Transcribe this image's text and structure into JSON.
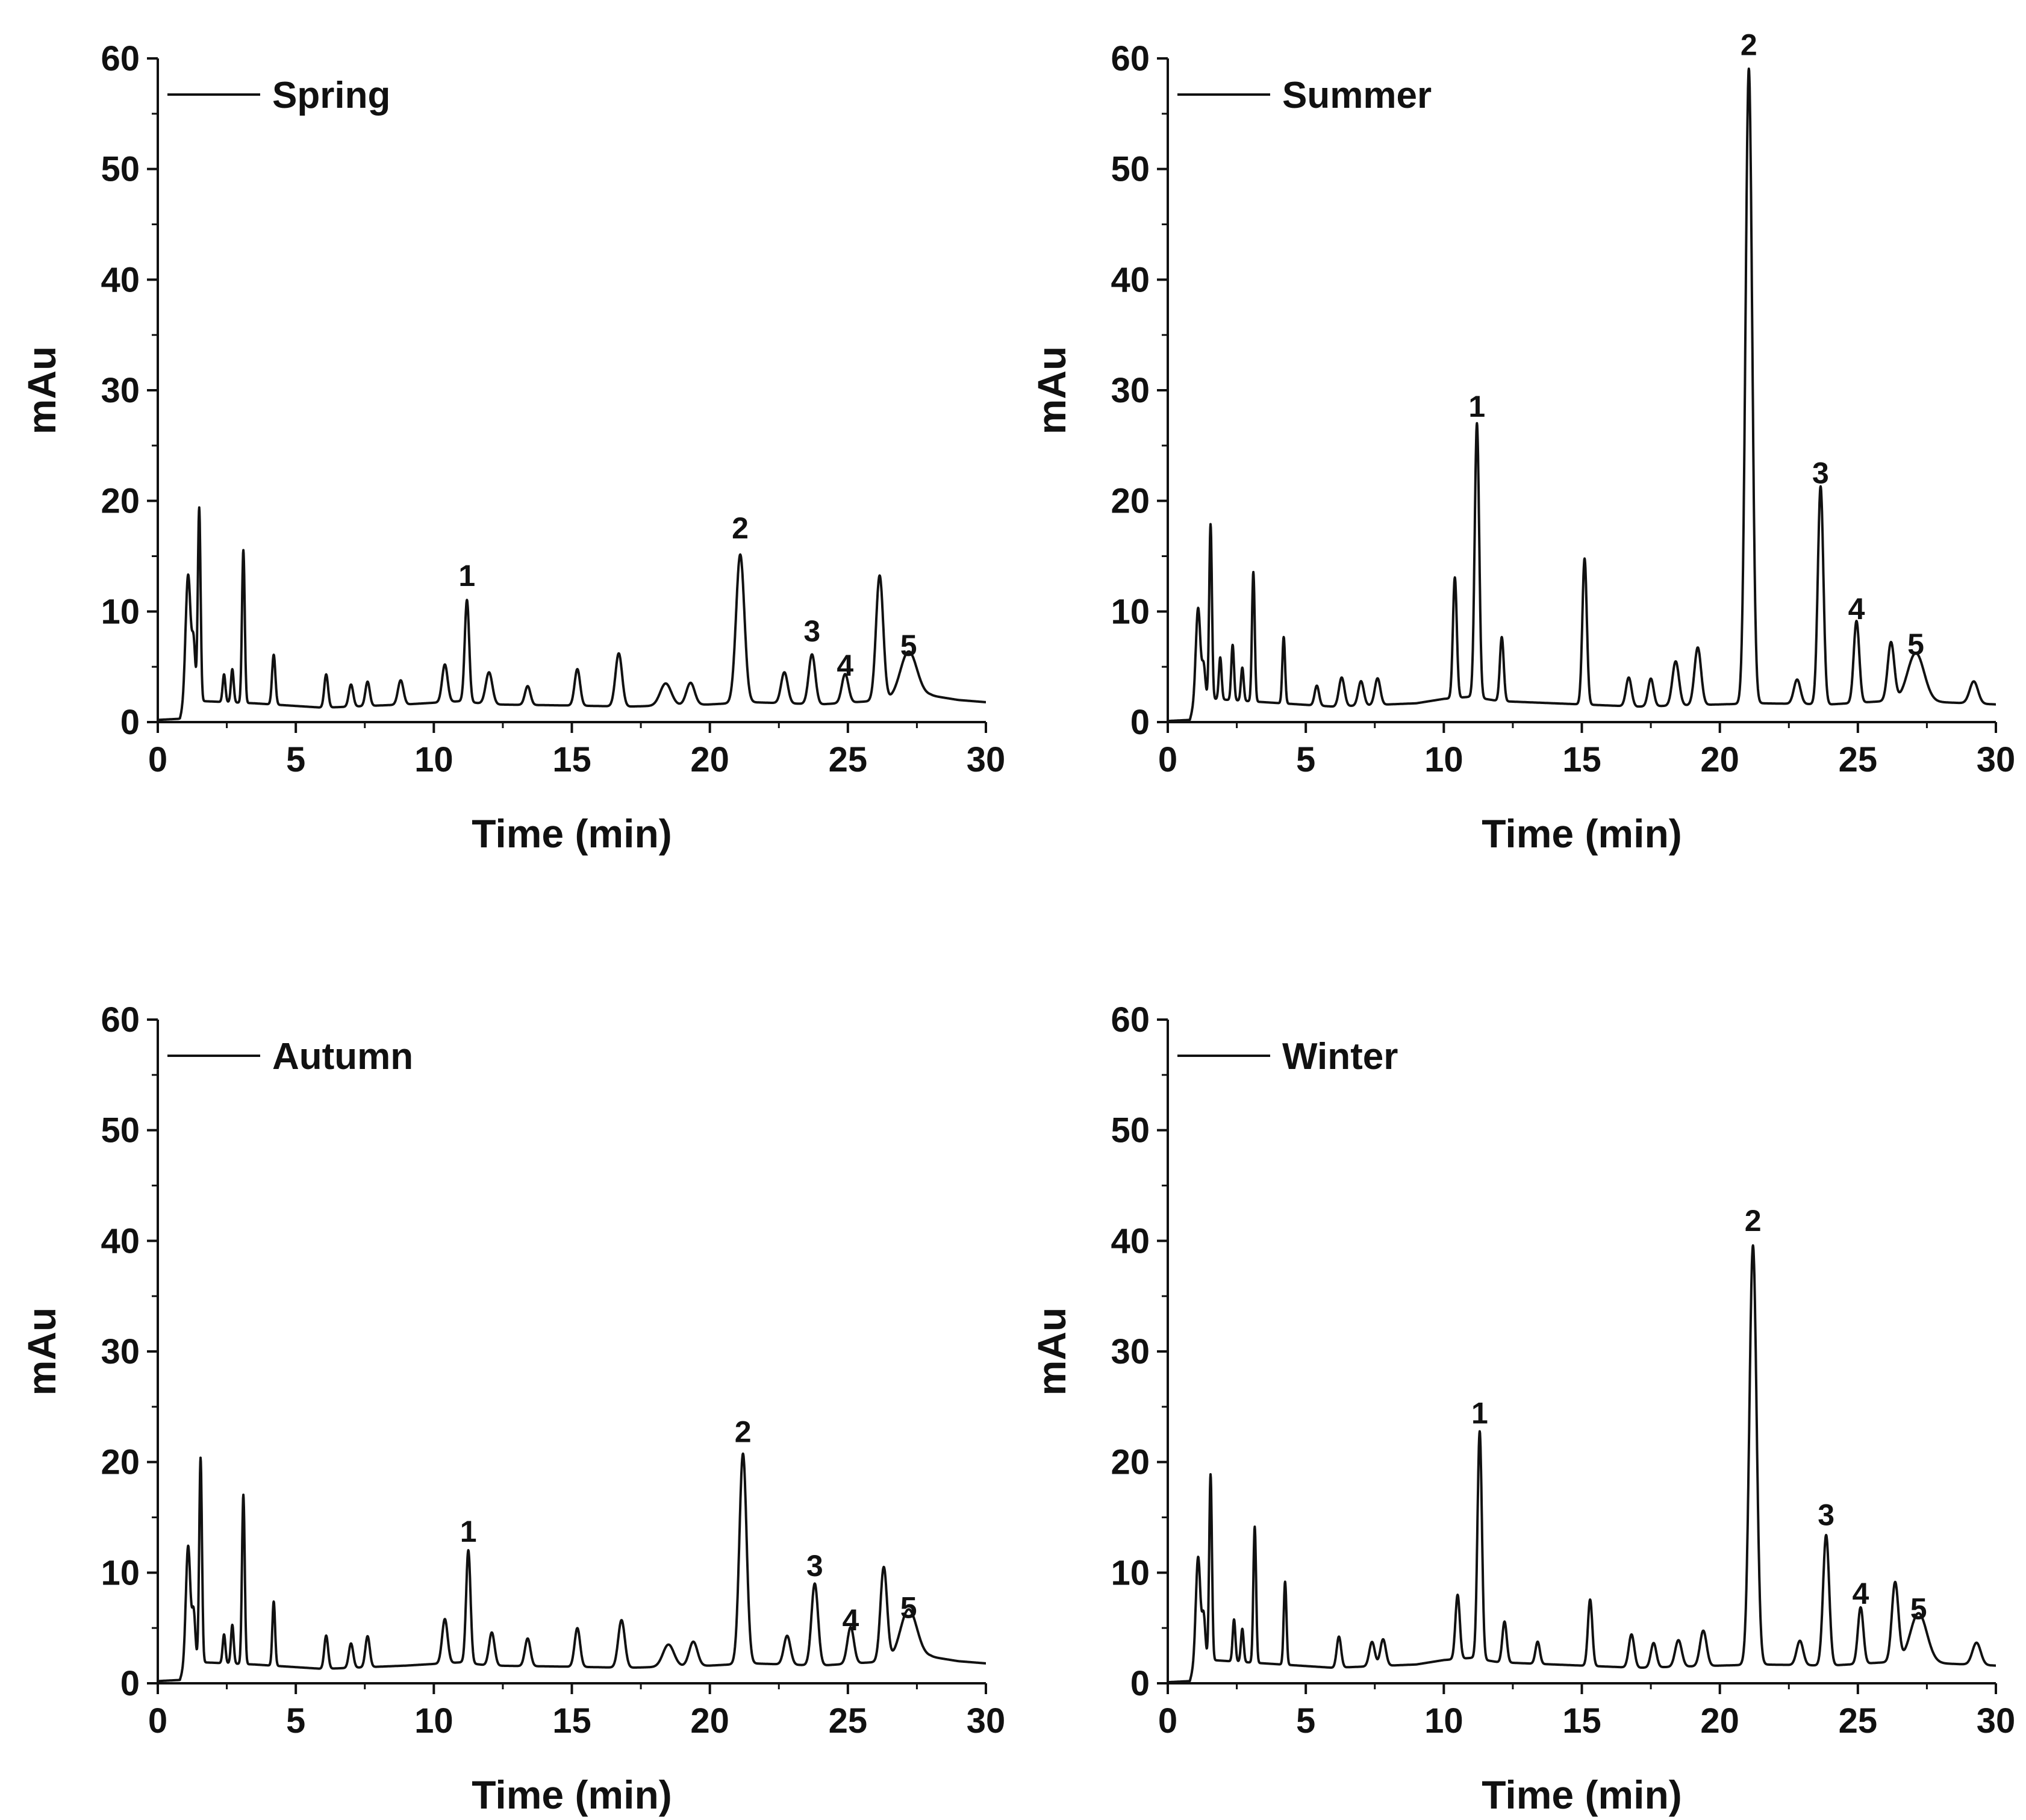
{
  "colors": {
    "line": "#111111",
    "axis": "#111111",
    "background": "#ffffff"
  },
  "chart_data": [
    {
      "type": "line",
      "title": "",
      "legend": "Spring",
      "xlabel": "Time (min)",
      "ylabel": "mAu",
      "xlim": [
        0,
        30
      ],
      "ylim": [
        0,
        60
      ],
      "xticks": [
        "0",
        "5",
        "10",
        "15",
        "20",
        "25",
        "30"
      ],
      "yticks": [
        "0",
        "10",
        "20",
        "30",
        "40",
        "50",
        "60"
      ],
      "baseline": [
        [
          0,
          0.2
        ],
        [
          0.8,
          0.3
        ],
        [
          1.0,
          1.8
        ],
        [
          1.6,
          1.9
        ],
        [
          3.5,
          1.7
        ],
        [
          6,
          1.3
        ],
        [
          9,
          1.6
        ],
        [
          11,
          1.9
        ],
        [
          12,
          1.6
        ],
        [
          15,
          1.5
        ],
        [
          17,
          1.4
        ],
        [
          20,
          1.6
        ],
        [
          21.5,
          1.8
        ],
        [
          24,
          1.6
        ],
        [
          26.5,
          2.0
        ],
        [
          28,
          2.4
        ],
        [
          29,
          2.0
        ],
        [
          30,
          1.8
        ]
      ],
      "peaks": [
        {
          "t": 1.1,
          "h": 11.5,
          "w": 0.09
        },
        {
          "t": 1.3,
          "h": 5.0,
          "w": 0.06
        },
        {
          "t": 1.5,
          "h": 17.5,
          "w": 0.05
        },
        {
          "t": 2.4,
          "h": 2.5,
          "w": 0.05
        },
        {
          "t": 2.7,
          "h": 3.0,
          "w": 0.05
        },
        {
          "t": 3.1,
          "h": 13.8,
          "w": 0.05
        },
        {
          "t": 4.2,
          "h": 4.5,
          "w": 0.06
        },
        {
          "t": 6.1,
          "h": 3.0,
          "w": 0.07
        },
        {
          "t": 7.0,
          "h": 2.0,
          "w": 0.08
        },
        {
          "t": 7.6,
          "h": 2.2,
          "w": 0.08
        },
        {
          "t": 8.8,
          "h": 2.2,
          "w": 0.1
        },
        {
          "t": 10.4,
          "h": 3.4,
          "w": 0.1
        },
        {
          "t": 11.2,
          "h": 9.2,
          "w": 0.08
        },
        {
          "t": 12.0,
          "h": 2.9,
          "w": 0.12
        },
        {
          "t": 13.4,
          "h": 1.7,
          "w": 0.1
        },
        {
          "t": 15.2,
          "h": 3.3,
          "w": 0.1
        },
        {
          "t": 16.7,
          "h": 4.8,
          "w": 0.12
        },
        {
          "t": 18.4,
          "h": 2.0,
          "w": 0.2
        },
        {
          "t": 19.3,
          "h": 2.0,
          "w": 0.15
        },
        {
          "t": 21.1,
          "h": 13.4,
          "w": 0.15
        },
        {
          "t": 22.7,
          "h": 2.8,
          "w": 0.12
        },
        {
          "t": 23.7,
          "h": 4.5,
          "w": 0.12
        },
        {
          "t": 24.9,
          "h": 2.6,
          "w": 0.12
        },
        {
          "t": 26.15,
          "h": 11.3,
          "w": 0.13
        },
        {
          "t": 27.2,
          "h": 4.2,
          "w": 0.3
        }
      ],
      "labels": [
        {
          "text": "1",
          "t": 11.2,
          "y": 12.3
        },
        {
          "text": "2",
          "t": 21.1,
          "y": 16.6
        },
        {
          "text": "3",
          "t": 23.7,
          "y": 7.3
        },
        {
          "text": "4",
          "t": 24.9,
          "y": 4.2
        },
        {
          "text": "5",
          "t": 27.2,
          "y": 6.0
        }
      ]
    },
    {
      "type": "line",
      "title": "",
      "legend": "Summer",
      "xlabel": "Time (min)",
      "ylabel": "mAu",
      "xlim": [
        0,
        30
      ],
      "ylim": [
        0,
        60
      ],
      "xticks": [
        "0",
        "5",
        "10",
        "15",
        "20",
        "25",
        "30"
      ],
      "yticks": [
        "0",
        "10",
        "20",
        "30",
        "40",
        "50",
        "60"
      ],
      "baseline": [
        [
          0,
          0.1
        ],
        [
          0.8,
          0.2
        ],
        [
          1.0,
          2.0
        ],
        [
          1.6,
          2.1
        ],
        [
          3.5,
          1.8
        ],
        [
          6,
          1.4
        ],
        [
          9,
          1.7
        ],
        [
          10,
          2.1
        ],
        [
          11,
          2.3
        ],
        [
          12,
          1.9
        ],
        [
          15,
          1.6
        ],
        [
          17,
          1.4
        ],
        [
          20,
          1.6
        ],
        [
          21.5,
          1.7
        ],
        [
          24,
          1.6
        ],
        [
          26,
          1.9
        ],
        [
          28,
          1.8
        ],
        [
          30,
          1.6
        ]
      ],
      "peaks": [
        {
          "t": 1.1,
          "h": 8.3,
          "w": 0.08
        },
        {
          "t": 1.3,
          "h": 3.0,
          "w": 0.06
        },
        {
          "t": 1.55,
          "h": 15.8,
          "w": 0.05
        },
        {
          "t": 1.9,
          "h": 3.8,
          "w": 0.05
        },
        {
          "t": 2.35,
          "h": 5.0,
          "w": 0.05
        },
        {
          "t": 2.7,
          "h": 3.0,
          "w": 0.05
        },
        {
          "t": 3.1,
          "h": 11.7,
          "w": 0.05
        },
        {
          "t": 4.2,
          "h": 6.0,
          "w": 0.05
        },
        {
          "t": 5.4,
          "h": 1.8,
          "w": 0.08
        },
        {
          "t": 6.3,
          "h": 2.6,
          "w": 0.1
        },
        {
          "t": 7.0,
          "h": 2.2,
          "w": 0.1
        },
        {
          "t": 7.6,
          "h": 2.4,
          "w": 0.1
        },
        {
          "t": 10.4,
          "h": 10.9,
          "w": 0.07
        },
        {
          "t": 11.2,
          "h": 24.8,
          "w": 0.08
        },
        {
          "t": 12.1,
          "h": 5.8,
          "w": 0.07
        },
        {
          "t": 15.1,
          "h": 13.2,
          "w": 0.08
        },
        {
          "t": 16.7,
          "h": 2.6,
          "w": 0.1
        },
        {
          "t": 17.5,
          "h": 2.5,
          "w": 0.1
        },
        {
          "t": 18.4,
          "h": 4.0,
          "w": 0.12
        },
        {
          "t": 19.2,
          "h": 5.2,
          "w": 0.12
        },
        {
          "t": 21.05,
          "h": 57.4,
          "w": 0.12
        },
        {
          "t": 22.8,
          "h": 2.2,
          "w": 0.12
        },
        {
          "t": 23.65,
          "h": 19.7,
          "w": 0.1
        },
        {
          "t": 24.95,
          "h": 7.4,
          "w": 0.1
        },
        {
          "t": 26.2,
          "h": 5.3,
          "w": 0.12
        },
        {
          "t": 27.1,
          "h": 4.4,
          "w": 0.3
        },
        {
          "t": 29.2,
          "h": 2.0,
          "w": 0.15
        }
      ],
      "labels": [
        {
          "text": "1",
          "t": 11.2,
          "y": 27.6
        },
        {
          "text": "2",
          "t": 21.05,
          "y": 60.3
        },
        {
          "text": "3",
          "t": 23.65,
          "y": 21.6
        },
        {
          "text": "4",
          "t": 24.95,
          "y": 9.3
        },
        {
          "text": "5",
          "t": 27.1,
          "y": 6.1
        }
      ]
    },
    {
      "type": "line",
      "title": "",
      "legend": "Autumn",
      "xlabel": "Time (min)",
      "ylabel": "mAu",
      "xlim": [
        0,
        30
      ],
      "ylim": [
        0,
        60
      ],
      "xticks": [
        "0",
        "5",
        "10",
        "15",
        "20",
        "25",
        "30"
      ],
      "yticks": [
        "0",
        "10",
        "20",
        "30",
        "40",
        "50",
        "60"
      ],
      "baseline": [
        [
          0,
          0.2
        ],
        [
          0.8,
          0.3
        ],
        [
          1.0,
          1.8
        ],
        [
          1.6,
          1.9
        ],
        [
          3.5,
          1.7
        ],
        [
          6,
          1.3
        ],
        [
          9,
          1.6
        ],
        [
          11,
          1.9
        ],
        [
          12,
          1.6
        ],
        [
          15,
          1.5
        ],
        [
          17,
          1.4
        ],
        [
          20,
          1.6
        ],
        [
          21.5,
          1.8
        ],
        [
          24,
          1.6
        ],
        [
          26.5,
          2.0
        ],
        [
          28,
          2.4
        ],
        [
          29,
          2.0
        ],
        [
          30,
          1.8
        ]
      ],
      "peaks": [
        {
          "t": 1.1,
          "h": 10.6,
          "w": 0.08
        },
        {
          "t": 1.3,
          "h": 4.5,
          "w": 0.06
        },
        {
          "t": 1.55,
          "h": 18.5,
          "w": 0.05
        },
        {
          "t": 2.4,
          "h": 2.6,
          "w": 0.05
        },
        {
          "t": 2.7,
          "h": 3.5,
          "w": 0.05
        },
        {
          "t": 3.1,
          "h": 15.3,
          "w": 0.05
        },
        {
          "t": 4.2,
          "h": 5.8,
          "w": 0.05
        },
        {
          "t": 6.1,
          "h": 3.0,
          "w": 0.07
        },
        {
          "t": 7.0,
          "h": 2.2,
          "w": 0.08
        },
        {
          "t": 7.6,
          "h": 2.8,
          "w": 0.08
        },
        {
          "t": 10.4,
          "h": 4.0,
          "w": 0.1
        },
        {
          "t": 11.25,
          "h": 10.2,
          "w": 0.08
        },
        {
          "t": 12.1,
          "h": 3.0,
          "w": 0.1
        },
        {
          "t": 13.4,
          "h": 2.5,
          "w": 0.1
        },
        {
          "t": 15.2,
          "h": 3.5,
          "w": 0.1
        },
        {
          "t": 16.8,
          "h": 4.3,
          "w": 0.12
        },
        {
          "t": 18.5,
          "h": 2.0,
          "w": 0.2
        },
        {
          "t": 19.4,
          "h": 2.2,
          "w": 0.15
        },
        {
          "t": 21.2,
          "h": 19.0,
          "w": 0.13
        },
        {
          "t": 22.8,
          "h": 2.6,
          "w": 0.12
        },
        {
          "t": 23.8,
          "h": 7.4,
          "w": 0.12
        },
        {
          "t": 25.1,
          "h": 3.3,
          "w": 0.12
        },
        {
          "t": 26.3,
          "h": 8.5,
          "w": 0.12
        },
        {
          "t": 27.2,
          "h": 4.5,
          "w": 0.3
        }
      ],
      "labels": [
        {
          "text": "1",
          "t": 11.25,
          "y": 12.8
        },
        {
          "text": "2",
          "t": 21.2,
          "y": 21.8
        },
        {
          "text": "3",
          "t": 23.8,
          "y": 9.7
        },
        {
          "text": "4",
          "t": 25.1,
          "y": 4.8
        },
        {
          "text": "5",
          "t": 27.2,
          "y": 5.9
        }
      ]
    },
    {
      "type": "line",
      "title": "",
      "legend": "Winter",
      "xlabel": "Time (min)",
      "ylabel": "mAu",
      "xlim": [
        0,
        30
      ],
      "ylim": [
        0,
        60
      ],
      "xticks": [
        "0",
        "5",
        "10",
        "15",
        "20",
        "25",
        "30"
      ],
      "yticks": [
        "0",
        "10",
        "20",
        "30",
        "40",
        "50",
        "60"
      ],
      "baseline": [
        [
          0,
          0.1
        ],
        [
          0.8,
          0.2
        ],
        [
          1.0,
          2.0
        ],
        [
          1.6,
          2.1
        ],
        [
          3.5,
          1.8
        ],
        [
          6,
          1.4
        ],
        [
          9,
          1.7
        ],
        [
          10,
          2.1
        ],
        [
          11,
          2.3
        ],
        [
          12,
          1.9
        ],
        [
          15,
          1.6
        ],
        [
          17,
          1.4
        ],
        [
          20,
          1.6
        ],
        [
          21.5,
          1.7
        ],
        [
          24,
          1.6
        ],
        [
          26,
          1.9
        ],
        [
          28,
          1.8
        ],
        [
          30,
          1.6
        ]
      ],
      "peaks": [
        {
          "t": 1.1,
          "h": 9.4,
          "w": 0.08
        },
        {
          "t": 1.3,
          "h": 4.0,
          "w": 0.06
        },
        {
          "t": 1.55,
          "h": 16.8,
          "w": 0.05
        },
        {
          "t": 2.4,
          "h": 3.8,
          "w": 0.05
        },
        {
          "t": 2.7,
          "h": 3.0,
          "w": 0.05
        },
        {
          "t": 3.15,
          "h": 12.3,
          "w": 0.05
        },
        {
          "t": 4.25,
          "h": 7.5,
          "w": 0.05
        },
        {
          "t": 6.2,
          "h": 2.8,
          "w": 0.08
        },
        {
          "t": 7.4,
          "h": 2.2,
          "w": 0.1
        },
        {
          "t": 7.8,
          "h": 2.4,
          "w": 0.1
        },
        {
          "t": 10.5,
          "h": 5.8,
          "w": 0.08
        },
        {
          "t": 11.3,
          "h": 20.6,
          "w": 0.08
        },
        {
          "t": 12.2,
          "h": 3.7,
          "w": 0.08
        },
        {
          "t": 13.4,
          "h": 2.0,
          "w": 0.08
        },
        {
          "t": 15.3,
          "h": 6.0,
          "w": 0.08
        },
        {
          "t": 16.8,
          "h": 3.0,
          "w": 0.1
        },
        {
          "t": 17.6,
          "h": 2.2,
          "w": 0.1
        },
        {
          "t": 18.5,
          "h": 2.4,
          "w": 0.12
        },
        {
          "t": 19.4,
          "h": 3.2,
          "w": 0.12
        },
        {
          "t": 21.2,
          "h": 37.9,
          "w": 0.13
        },
        {
          "t": 22.9,
          "h": 2.2,
          "w": 0.12
        },
        {
          "t": 23.85,
          "h": 11.8,
          "w": 0.11
        },
        {
          "t": 25.1,
          "h": 5.1,
          "w": 0.1
        },
        {
          "t": 26.35,
          "h": 7.2,
          "w": 0.12
        },
        {
          "t": 27.2,
          "h": 4.5,
          "w": 0.3
        },
        {
          "t": 29.3,
          "h": 2.0,
          "w": 0.15
        }
      ],
      "labels": [
        {
          "text": "1",
          "t": 11.3,
          "y": 23.5
        },
        {
          "text": "2",
          "t": 21.2,
          "y": 40.9
        },
        {
          "text": "3",
          "t": 23.85,
          "y": 14.3
        },
        {
          "text": "4",
          "t": 25.1,
          "y": 7.2
        },
        {
          "text": "5",
          "t": 27.2,
          "y": 5.8
        }
      ]
    }
  ]
}
